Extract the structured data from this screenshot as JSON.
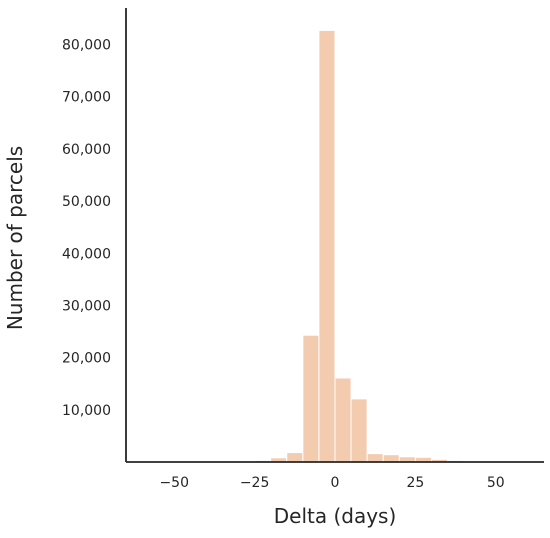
{
  "chart_data": {
    "type": "bar",
    "xlabel": "Delta (days)",
    "ylabel": "Number of parcels",
    "x_ticks": [
      -50,
      -25,
      0,
      25,
      50
    ],
    "x_tick_labels": [
      "−50",
      "−25",
      "0",
      "25",
      "50"
    ],
    "y_ticks": [
      10000,
      20000,
      30000,
      40000,
      50000,
      60000,
      70000,
      80000
    ],
    "y_tick_labels": [
      "10,000",
      "20,000",
      "30,000",
      "40,000",
      "50,000",
      "60,000",
      "70,000",
      "80,000"
    ],
    "xlim": [
      -65,
      65
    ],
    "ylim": [
      0,
      87000
    ],
    "bar_color": "#f3cbaf",
    "bar_edge_color": "#ffffff",
    "grid": false,
    "bins": [
      {
        "x0": -30,
        "x1": -25,
        "value": 100
      },
      {
        "x0": -25,
        "x1": -20,
        "value": 300
      },
      {
        "x0": -20,
        "x1": -15,
        "value": 800
      },
      {
        "x0": -15,
        "x1": -10,
        "value": 1800
      },
      {
        "x0": -10,
        "x1": -5,
        "value": 24300
      },
      {
        "x0": -5,
        "x1": 0,
        "value": 82700
      },
      {
        "x0": 0,
        "x1": 5,
        "value": 16100
      },
      {
        "x0": 5,
        "x1": 10,
        "value": 12100
      },
      {
        "x0": 10,
        "x1": 15,
        "value": 1600
      },
      {
        "x0": 15,
        "x1": 20,
        "value": 1400
      },
      {
        "x0": 20,
        "x1": 25,
        "value": 1000
      },
      {
        "x0": 25,
        "x1": 30,
        "value": 900
      },
      {
        "x0": 30,
        "x1": 35,
        "value": 500
      },
      {
        "x0": 35,
        "x1": 40,
        "value": 300
      },
      {
        "x0": 40,
        "x1": 45,
        "value": 100
      },
      {
        "x0": 45,
        "x1": 50,
        "value": 60
      },
      {
        "x0": 50,
        "x1": 55,
        "value": 40
      },
      {
        "x0": 55,
        "x1": 60,
        "value": 20
      }
    ]
  }
}
